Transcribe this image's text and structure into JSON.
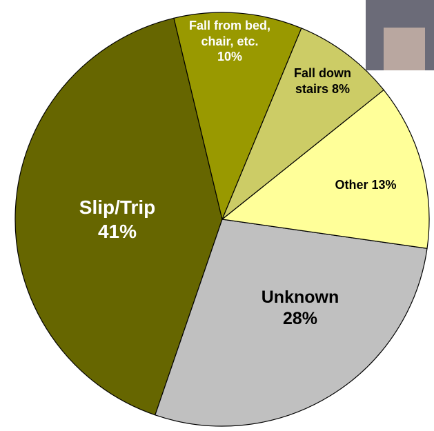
{
  "chart_data": {
    "type": "pie",
    "categories": [
      "Fall from bed, chair, etc.",
      "Fall down stairs",
      "Other",
      "Unknown",
      "Slip/Trip"
    ],
    "values": [
      10,
      8,
      13,
      28,
      41
    ],
    "value_labels": [
      "10%",
      "8%",
      "13%",
      "28%",
      "41%"
    ],
    "colors": [
      "#999900",
      "#cccc66",
      "#ffff99",
      "#c0c0c0",
      "#666600"
    ]
  }
}
